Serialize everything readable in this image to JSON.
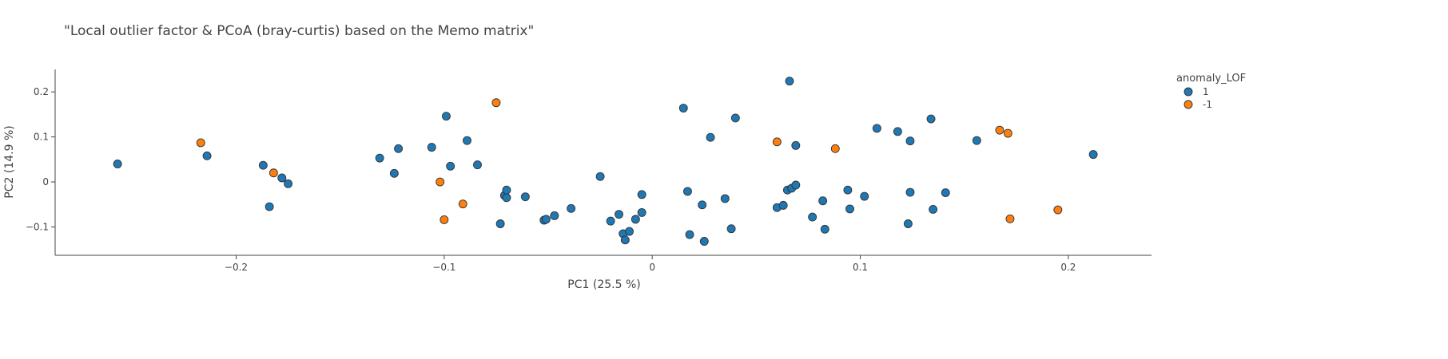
{
  "chart_data": {
    "type": "scatter",
    "title": "\"Local outlier factor & PCoA (bray-curtis) based on the Memo matrix\"",
    "xlabel": "PC1 (25.5 %)",
    "ylabel": "PC2 (14.9 %)",
    "xlim": [
      -0.287,
      0.24
    ],
    "ylim": [
      -0.163,
      0.25
    ],
    "xticks": [
      -0.2,
      -0.1,
      0,
      0.1,
      0.2
    ],
    "xtick_labels": [
      "−0.2",
      "−0.1",
      "0",
      "0.1",
      "0.2"
    ],
    "yticks": [
      -0.1,
      0,
      0.1,
      0.2
    ],
    "ytick_labels": [
      "−0.1",
      "0",
      "0.1",
      "0.2"
    ],
    "grid": false,
    "legend": {
      "title": "anomaly_LOF",
      "placement": "top-right"
    },
    "series": [
      {
        "name": "1",
        "color": "#1f77b4",
        "points": [
          [
            -0.257,
            0.04
          ],
          [
            -0.214,
            0.058
          ],
          [
            -0.187,
            0.037
          ],
          [
            -0.184,
            -0.055
          ],
          [
            -0.178,
            0.009
          ],
          [
            -0.175,
            -0.004
          ],
          [
            -0.131,
            0.053
          ],
          [
            -0.124,
            0.019
          ],
          [
            -0.122,
            0.074
          ],
          [
            -0.106,
            0.077
          ],
          [
            -0.099,
            0.146
          ],
          [
            -0.097,
            0.035
          ],
          [
            -0.089,
            0.092
          ],
          [
            -0.084,
            0.038
          ],
          [
            -0.073,
            -0.093
          ],
          [
            -0.071,
            -0.03
          ],
          [
            -0.07,
            -0.035
          ],
          [
            -0.07,
            -0.018
          ],
          [
            -0.061,
            -0.033
          ],
          [
            -0.052,
            -0.085
          ],
          [
            -0.051,
            -0.083
          ],
          [
            -0.047,
            -0.075
          ],
          [
            -0.039,
            -0.059
          ],
          [
            -0.025,
            0.012
          ],
          [
            -0.02,
            -0.087
          ],
          [
            -0.016,
            -0.072
          ],
          [
            -0.014,
            -0.115
          ],
          [
            -0.013,
            -0.129
          ],
          [
            -0.011,
            -0.11
          ],
          [
            -0.008,
            -0.083
          ],
          [
            -0.005,
            -0.068
          ],
          [
            -0.005,
            -0.028
          ],
          [
            0.015,
            0.164
          ],
          [
            0.017,
            -0.021
          ],
          [
            0.018,
            -0.117
          ],
          [
            0.024,
            -0.051
          ],
          [
            0.025,
            -0.132
          ],
          [
            0.028,
            0.099
          ],
          [
            0.035,
            -0.037
          ],
          [
            0.038,
            -0.104
          ],
          [
            0.04,
            0.142
          ],
          [
            0.06,
            -0.057
          ],
          [
            0.063,
            -0.052
          ],
          [
            0.065,
            -0.018
          ],
          [
            0.066,
            0.224
          ],
          [
            0.067,
            -0.014
          ],
          [
            0.069,
            -0.007
          ],
          [
            0.069,
            0.081
          ],
          [
            0.077,
            -0.078
          ],
          [
            0.082,
            -0.042
          ],
          [
            0.083,
            -0.105
          ],
          [
            0.094,
            -0.018
          ],
          [
            0.095,
            -0.06
          ],
          [
            0.102,
            -0.032
          ],
          [
            0.108,
            0.119
          ],
          [
            0.118,
            0.112
          ],
          [
            0.123,
            -0.093
          ],
          [
            0.124,
            -0.023
          ],
          [
            0.124,
            0.091
          ],
          [
            0.134,
            0.14
          ],
          [
            0.135,
            -0.061
          ],
          [
            0.141,
            -0.024
          ],
          [
            0.156,
            0.092
          ],
          [
            0.212,
            0.061
          ]
        ]
      },
      {
        "name": "-1",
        "color": "#ff7f0e",
        "points": [
          [
            -0.217,
            0.087
          ],
          [
            -0.182,
            0.02
          ],
          [
            -0.102,
            0.0
          ],
          [
            -0.1,
            -0.084
          ],
          [
            -0.091,
            -0.049
          ],
          [
            -0.075,
            0.176
          ],
          [
            0.06,
            0.089
          ],
          [
            0.088,
            0.074
          ],
          [
            0.167,
            0.115
          ],
          [
            0.171,
            0.108
          ],
          [
            0.172,
            -0.082
          ],
          [
            0.195,
            -0.062
          ]
        ]
      }
    ]
  }
}
